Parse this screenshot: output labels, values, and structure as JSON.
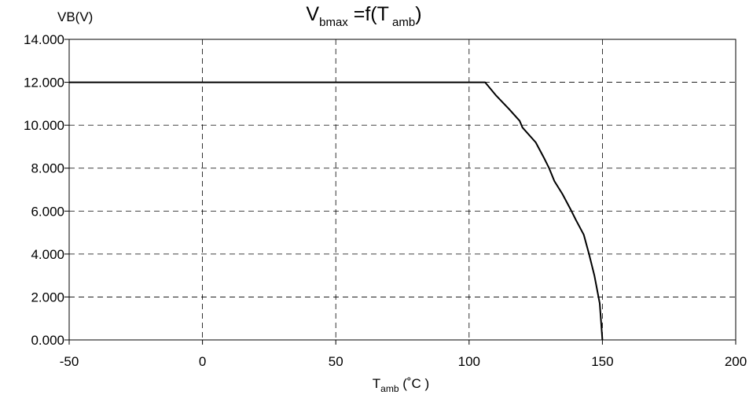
{
  "chart_data": {
    "type": "line",
    "title": {
      "main": "V",
      "main_sub": "bmax",
      "eq": " =f(T",
      "eq_sub": " amb",
      "close": ")"
    },
    "ylabel": "VB(V)",
    "xlabel": {
      "main": "T",
      "sub": "amb",
      "unit": " (˚C )"
    },
    "xlim": [
      -50,
      200
    ],
    "ylim": [
      0,
      14
    ],
    "x_ticks": [
      -50,
      0,
      50,
      100,
      150,
      200
    ],
    "x_tick_labels": [
      "-50",
      "0",
      "50",
      "100",
      "150",
      "200"
    ],
    "y_ticks": [
      0,
      2,
      4,
      6,
      8,
      10,
      12,
      14
    ],
    "y_tick_labels": [
      "0.000",
      "2.000",
      "4.000",
      "6.000",
      "8.000",
      "10.000",
      "12.000",
      "14.000"
    ],
    "grid": true,
    "series": [
      {
        "x": [
          -50,
          105,
          106,
          110,
          115,
          119,
          120,
          125,
          128,
          130,
          132,
          135,
          138,
          140,
          143,
          145,
          147,
          149,
          150
        ],
        "y": [
          12,
          12,
          12,
          11.4,
          10.75,
          10.2,
          9.9,
          9.2,
          8.5,
          8.0,
          7.4,
          6.8,
          6.1,
          5.6,
          4.9,
          4.0,
          3.0,
          1.7,
          0
        ]
      }
    ]
  }
}
